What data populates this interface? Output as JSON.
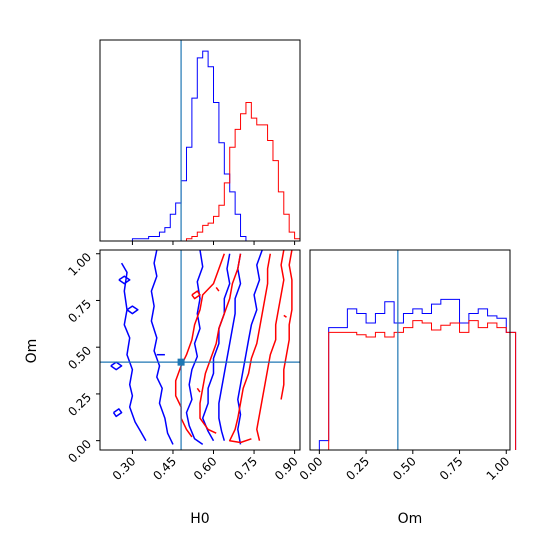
{
  "colors": {
    "series_a": "#0000ff",
    "series_b": "#ff0000",
    "truth": "#1f77b4",
    "axes": "#000000"
  },
  "chart_data": [
    {
      "type": "histogram",
      "panel": "H0 marginal",
      "xlim": [
        0.18,
        0.92
      ],
      "x_ticks": [
        0.3,
        0.45,
        0.6,
        0.75,
        0.9
      ],
      "truth": 0.48,
      "bin_start": 0.18,
      "bin_width": 0.02,
      "series": [
        {
          "color": "blue",
          "values": [
            0,
            0,
            0,
            0,
            0,
            0,
            0.01,
            0.01,
            0.01,
            0.02,
            0.02,
            0.04,
            0.06,
            0.12,
            0.17,
            0.27,
            0.42,
            0.64,
            0.82,
            0.85,
            0.78,
            0.62,
            0.44,
            0.3,
            0.22,
            0.12,
            0.02,
            0,
            0,
            0,
            0,
            0,
            0,
            0,
            0,
            0,
            0
          ]
        },
        {
          "color": "red",
          "values": [
            0,
            0,
            0,
            0,
            0,
            0,
            0,
            0,
            0,
            0,
            0,
            0,
            0,
            0,
            0,
            0,
            0.01,
            0.02,
            0.04,
            0.07,
            0.08,
            0.11,
            0.16,
            0.26,
            0.42,
            0.5,
            0.57,
            0.62,
            0.55,
            0.52,
            0.52,
            0.45,
            0.36,
            0.22,
            0.12,
            0.04,
            0.01
          ]
        }
      ]
    },
    {
      "type": "contour",
      "panel": "H0 vs Om",
      "xlabel": "H0",
      "ylabel": "Om",
      "xlim": [
        0.18,
        0.92
      ],
      "ylim": [
        -0.05,
        1.02
      ],
      "x_ticks": [
        0.3,
        0.45,
        0.6,
        0.75,
        0.9
      ],
      "x_tick_labels": [
        "0.30",
        "0.45",
        "0.60",
        "0.75",
        "0.90"
      ],
      "y_ticks": [
        0.0,
        0.25,
        0.5,
        0.75,
        1.0
      ],
      "y_tick_labels": [
        "0.00",
        "0.25",
        "0.50",
        "0.75",
        "1.00"
      ],
      "truth": {
        "x": 0.48,
        "y": 0.42
      },
      "contours": [
        {
          "color": "blue",
          "points": [
            [
              0.26,
              0.95
            ],
            [
              0.28,
              0.9
            ],
            [
              0.27,
              0.8
            ],
            [
              0.28,
              0.7
            ],
            [
              0.27,
              0.62
            ],
            [
              0.29,
              0.55
            ],
            [
              0.28,
              0.46
            ],
            [
              0.3,
              0.38
            ],
            [
              0.29,
              0.3
            ],
            [
              0.3,
              0.24
            ],
            [
              0.29,
              0.18
            ],
            [
              0.31,
              0.1
            ],
            [
              0.33,
              0.05
            ],
            [
              0.35,
              0.0
            ]
          ]
        },
        {
          "color": "blue",
          "points": [
            [
              0.39,
              1.02
            ],
            [
              0.38,
              0.95
            ],
            [
              0.39,
              0.88
            ],
            [
              0.37,
              0.8
            ],
            [
              0.38,
              0.72
            ],
            [
              0.37,
              0.64
            ],
            [
              0.39,
              0.55
            ],
            [
              0.38,
              0.48
            ],
            [
              0.4,
              0.4
            ],
            [
              0.39,
              0.34
            ],
            [
              0.41,
              0.28
            ],
            [
              0.4,
              0.2
            ],
            [
              0.42,
              0.12
            ],
            [
              0.43,
              0.04
            ],
            [
              0.45,
              -0.02
            ]
          ]
        },
        {
          "color": "blue",
          "points": [
            [
              0.55,
              1.02
            ],
            [
              0.56,
              0.93
            ],
            [
              0.54,
              0.85
            ],
            [
              0.55,
              0.76
            ],
            [
              0.54,
              0.68
            ],
            [
              0.55,
              0.6
            ],
            [
              0.53,
              0.52
            ],
            [
              0.54,
              0.45
            ],
            [
              0.52,
              0.38
            ],
            [
              0.51,
              0.3
            ],
            [
              0.52,
              0.22
            ],
            [
              0.5,
              0.15
            ],
            [
              0.51,
              0.08
            ],
            [
              0.53,
              0.01
            ],
            [
              0.56,
              -0.02
            ]
          ]
        },
        {
          "color": "blue",
          "points": [
            [
              0.66,
              1.0
            ],
            [
              0.65,
              0.92
            ],
            [
              0.66,
              0.84
            ],
            [
              0.64,
              0.76
            ],
            [
              0.64,
              0.68
            ],
            [
              0.62,
              0.6
            ],
            [
              0.62,
              0.52
            ],
            [
              0.6,
              0.44
            ],
            [
              0.6,
              0.36
            ],
            [
              0.58,
              0.28
            ],
            [
              0.58,
              0.2
            ],
            [
              0.56,
              0.12
            ],
            [
              0.58,
              0.05
            ],
            [
              0.6,
              0.0
            ]
          ]
        },
        {
          "color": "blue",
          "points": [
            [
              0.7,
              1.0
            ],
            [
              0.69,
              0.92
            ],
            [
              0.7,
              0.84
            ],
            [
              0.68,
              0.76
            ],
            [
              0.68,
              0.68
            ],
            [
              0.67,
              0.6
            ],
            [
              0.66,
              0.52
            ],
            [
              0.65,
              0.44
            ],
            [
              0.64,
              0.36
            ],
            [
              0.63,
              0.28
            ],
            [
              0.62,
              0.2
            ],
            [
              0.62,
              0.12
            ],
            [
              0.63,
              0.05
            ],
            [
              0.64,
              0.0
            ]
          ]
        },
        {
          "color": "blue",
          "points": [
            [
              0.78,
              1.02
            ],
            [
              0.76,
              0.94
            ],
            [
              0.77,
              0.86
            ],
            [
              0.75,
              0.78
            ],
            [
              0.76,
              0.7
            ],
            [
              0.74,
              0.62
            ],
            [
              0.73,
              0.54
            ],
            [
              0.72,
              0.46
            ],
            [
              0.71,
              0.38
            ],
            [
              0.7,
              0.3
            ],
            [
              0.69,
              0.22
            ],
            [
              0.7,
              0.14
            ],
            [
              0.69,
              0.06
            ],
            [
              0.7,
              -0.02
            ]
          ]
        },
        {
          "color": "blue",
          "points": [
            [
              0.25,
              0.86
            ],
            [
              0.27,
              0.88
            ],
            [
              0.29,
              0.86
            ],
            [
              0.27,
              0.84
            ],
            [
              0.25,
              0.86
            ]
          ]
        },
        {
          "color": "blue",
          "points": [
            [
              0.28,
              0.7
            ],
            [
              0.3,
              0.72
            ],
            [
              0.32,
              0.7
            ],
            [
              0.3,
              0.68
            ],
            [
              0.28,
              0.7
            ]
          ]
        },
        {
          "color": "blue",
          "points": [
            [
              0.22,
              0.4
            ],
            [
              0.24,
              0.42
            ],
            [
              0.26,
              0.4
            ],
            [
              0.24,
              0.38
            ],
            [
              0.22,
              0.4
            ]
          ]
        },
        {
          "color": "blue",
          "points": [
            [
              0.23,
              0.15
            ],
            [
              0.25,
              0.17
            ],
            [
              0.26,
              0.15
            ],
            [
              0.24,
              0.13
            ],
            [
              0.23,
              0.15
            ]
          ]
        },
        {
          "color": "blue",
          "points": [
            [
              0.39,
              0.46
            ],
            [
              0.42,
              0.46
            ]
          ]
        },
        {
          "color": "red",
          "points": [
            [
              0.64,
              1.0
            ],
            [
              0.62,
              0.92
            ],
            [
              0.6,
              0.84
            ],
            [
              0.56,
              0.78
            ],
            [
              0.55,
              0.7
            ],
            [
              0.53,
              0.62
            ],
            [
              0.52,
              0.54
            ],
            [
              0.5,
              0.46
            ],
            [
              0.48,
              0.4
            ],
            [
              0.46,
              0.32
            ],
            [
              0.46,
              0.24
            ],
            [
              0.48,
              0.18
            ],
            [
              0.48,
              0.12
            ],
            [
              0.5,
              0.06
            ],
            [
              0.52,
              0.02
            ]
          ]
        },
        {
          "color": "red",
          "points": [
            [
              0.7,
              1.0
            ],
            [
              0.69,
              0.92
            ],
            [
              0.67,
              0.84
            ],
            [
              0.66,
              0.76
            ],
            [
              0.64,
              0.68
            ],
            [
              0.62,
              0.6
            ],
            [
              0.61,
              0.52
            ],
            [
              0.59,
              0.44
            ],
            [
              0.57,
              0.36
            ],
            [
              0.56,
              0.28
            ],
            [
              0.55,
              0.2
            ],
            [
              0.55,
              0.12
            ],
            [
              0.58,
              0.06
            ],
            [
              0.61,
              0.04
            ]
          ]
        },
        {
          "color": "red",
          "points": [
            [
              0.81,
              1.0
            ],
            [
              0.8,
              0.92
            ],
            [
              0.8,
              0.84
            ],
            [
              0.79,
              0.76
            ],
            [
              0.78,
              0.68
            ],
            [
              0.77,
              0.6
            ],
            [
              0.76,
              0.52
            ],
            [
              0.74,
              0.44
            ],
            [
              0.73,
              0.36
            ],
            [
              0.71,
              0.28
            ],
            [
              0.7,
              0.2
            ],
            [
              0.69,
              0.12
            ],
            [
              0.68,
              0.06
            ],
            [
              0.66,
              0.0
            ],
            [
              0.7,
              -0.01
            ],
            [
              0.74,
              0.01
            ]
          ]
        },
        {
          "color": "red",
          "points": [
            [
              0.86,
              1.02
            ],
            [
              0.85,
              0.94
            ],
            [
              0.86,
              0.86
            ],
            [
              0.85,
              0.78
            ],
            [
              0.84,
              0.7
            ],
            [
              0.83,
              0.62
            ],
            [
              0.83,
              0.54
            ],
            [
              0.81,
              0.46
            ],
            [
              0.8,
              0.38
            ],
            [
              0.79,
              0.3
            ],
            [
              0.78,
              0.22
            ],
            [
              0.77,
              0.14
            ],
            [
              0.76,
              0.06
            ],
            [
              0.77,
              0.0
            ]
          ]
        },
        {
          "color": "red",
          "points": [
            [
              0.89,
              1.02
            ],
            [
              0.88,
              0.94
            ],
            [
              0.89,
              0.86
            ],
            [
              0.89,
              0.78
            ],
            [
              0.89,
              0.7
            ],
            [
              0.88,
              0.62
            ],
            [
              0.88,
              0.54
            ],
            [
              0.87,
              0.46
            ],
            [
              0.86,
              0.38
            ],
            [
              0.86,
              0.3
            ],
            [
              0.85,
              0.22
            ]
          ]
        },
        {
          "color": "red",
          "points": [
            [
              0.52,
              0.78
            ],
            [
              0.54,
              0.8
            ],
            [
              0.55,
              0.78
            ],
            [
              0.53,
              0.76
            ],
            [
              0.52,
              0.78
            ]
          ]
        },
        {
          "color": "red",
          "points": [
            [
              0.61,
              0.82
            ],
            [
              0.62,
              0.8
            ]
          ]
        },
        {
          "color": "red",
          "points": [
            [
              0.86,
              0.67
            ],
            [
              0.87,
              0.66
            ]
          ]
        },
        {
          "color": "red",
          "points": [
            [
              0.54,
              0.28
            ],
            [
              0.55,
              0.26
            ]
          ]
        }
      ]
    },
    {
      "type": "histogram",
      "panel": "Om marginal",
      "xlabel": "Om",
      "xlim": [
        -0.05,
        1.02
      ],
      "x_ticks": [
        0.0,
        0.25,
        0.5,
        0.75,
        1.0
      ],
      "x_tick_labels": [
        "0.00",
        "0.25",
        "0.50",
        "0.75",
        "1.00"
      ],
      "truth": 0.42,
      "bin_start": 0.0,
      "bin_width": 0.05,
      "series": [
        {
          "color": "blue",
          "values": [
            0.04,
            0.52,
            0.52,
            0.6,
            0.58,
            0.54,
            0.58,
            0.63,
            0.54,
            0.58,
            0.6,
            0.58,
            0.62,
            0.64,
            0.64,
            0.54,
            0.58,
            0.6,
            0.57,
            0.56,
            0.5
          ]
        },
        {
          "color": "red",
          "values": [
            0.0,
            0.5,
            0.5,
            0.5,
            0.49,
            0.48,
            0.5,
            0.48,
            0.5,
            0.52,
            0.55,
            0.54,
            0.51,
            0.53,
            0.54,
            0.5,
            0.55,
            0.52,
            0.54,
            0.52,
            0.5
          ]
        }
      ]
    }
  ]
}
